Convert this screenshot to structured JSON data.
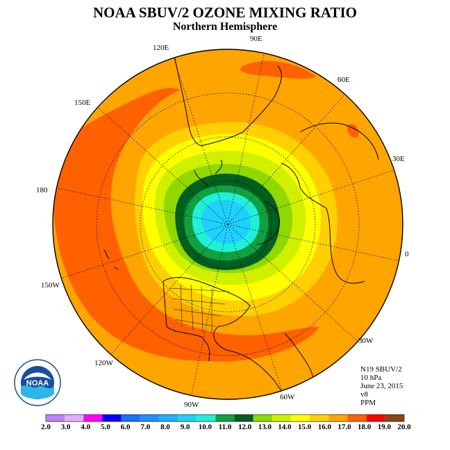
{
  "title": "NOAA SBUV/2 OZONE MIXING RATIO",
  "subtitle": "Northern Hemisphere",
  "longitude_labels": [
    "90E",
    "60E",
    "30E",
    "0",
    "30W",
    "60W",
    "90W",
    "120W",
    "150W",
    "180",
    "150E",
    "120E"
  ],
  "info": {
    "satellite": "N19 SBUV/2",
    "pressure": "10 hPa",
    "date": "June 23, 2015",
    "version": "v8",
    "units": "PPM"
  },
  "logo_text": "NOAA",
  "colorbar": {
    "ticks": [
      "2.0",
      "3.0",
      "4.0",
      "5.0",
      "6.0",
      "7.0",
      "8.0",
      "9.0",
      "10.0",
      "11.0",
      "12.0",
      "13.0",
      "14.0",
      "15.0",
      "16.0",
      "17.0",
      "18.0",
      "19.0",
      "20.0"
    ],
    "colors": [
      "#c080ff",
      "#e0b0ff",
      "#ff00ff",
      "#0000ff",
      "#1a6fff",
      "#1e90ff",
      "#1fb0ff",
      "#1ed0ff",
      "#20f0d8",
      "#10a040",
      "#006020",
      "#90d800",
      "#d0f000",
      "#ffff00",
      "#ffd000",
      "#ffa500",
      "#ff6000",
      "#ff0000",
      "#8b4513"
    ]
  }
}
